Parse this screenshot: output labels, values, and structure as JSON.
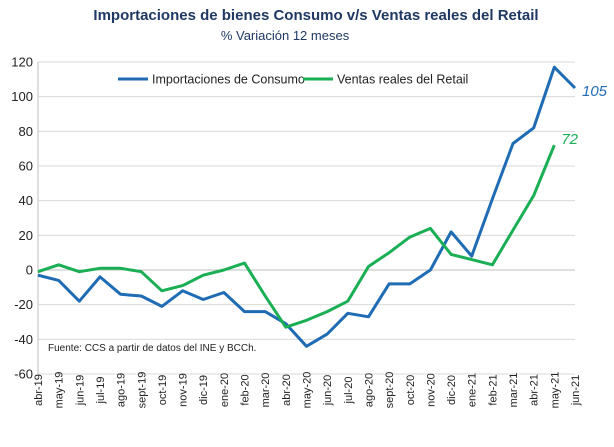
{
  "chart_data": {
    "type": "line",
    "title": "Importaciones de bienes Consumo v/s Ventas reales del Retail",
    "subtitle": "% Variación 12 meses",
    "categories": [
      "abr-19",
      "may-19",
      "jun-19",
      "jul-19",
      "ago-19",
      "sept-19",
      "oct-19",
      "nov-19",
      "dic-19",
      "ene-20",
      "feb-20",
      "mar-20",
      "abr-20",
      "may-20",
      "jun-20",
      "jul-20",
      "ago-20",
      "sept-20",
      "oct-20",
      "nov-20",
      "dic-20",
      "ene-21",
      "feb-21",
      "mar-21",
      "abr-21",
      "may-21",
      "jun-21"
    ],
    "ylim": [
      -60,
      120
    ],
    "yticks": [
      "120",
      "100",
      "80",
      "60",
      "40",
      "20",
      "0",
      "-20",
      "-40",
      "-60"
    ],
    "grid": true,
    "legend": "top-right",
    "series": [
      {
        "name": "Importaciones de Consumo",
        "color": "#1f6cb5",
        "values": [
          -3,
          -6,
          -18,
          -4,
          -14,
          -15,
          -21,
          -12,
          -17,
          -13,
          -24,
          -24,
          -31,
          -44,
          -37,
          -25,
          -27,
          -8,
          -8,
          0,
          22,
          8,
          41,
          73,
          82,
          117,
          105
        ],
        "end_label": "105"
      },
      {
        "name": "Ventas reales del Retail",
        "color": "#1aaf54",
        "values": [
          -1,
          3,
          -1,
          1,
          1,
          -1,
          -12,
          -9,
          -3,
          0,
          4,
          -15,
          -33,
          -29,
          -24,
          -18,
          2,
          10,
          19,
          24,
          9,
          6,
          3,
          23,
          43,
          72,
          null
        ],
        "end_label": "72"
      }
    ],
    "source_note": "Fuente: CCS a partir de datos del INE y BCCh."
  }
}
